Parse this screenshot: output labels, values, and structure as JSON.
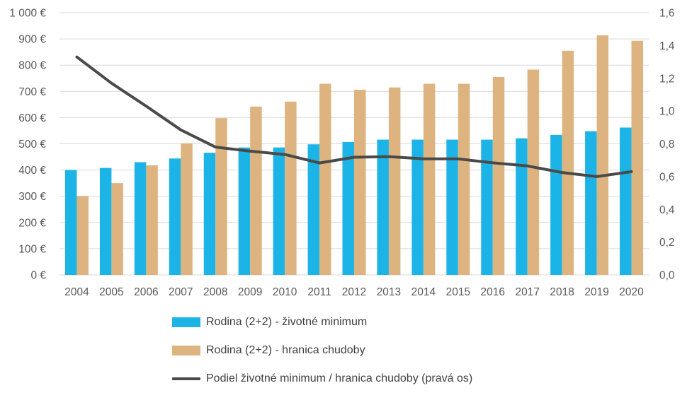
{
  "colors": {
    "life_minimum": "#1cb4e6",
    "poverty_line": "#ddb47f",
    "ratio": "#4a4a4a",
    "grid": "#d9d9d9",
    "text": "#595959"
  },
  "chart_data": {
    "type": "bar",
    "categories": [
      "2004",
      "2005",
      "2006",
      "2007",
      "2008",
      "2009",
      "2010",
      "2011",
      "2012",
      "2013",
      "2014",
      "2015",
      "2016",
      "2017",
      "2018",
      "2019",
      "2020"
    ],
    "series": [
      {
        "name": "Rodina (2+2) - životné minimum",
        "type": "bar",
        "axis": "left",
        "values": [
          400,
          408,
          430,
          444,
          466,
          486,
          486,
          498,
          507,
          516,
          516,
          516,
          516,
          521,
          534,
          548,
          562
        ]
      },
      {
        "name": "Rodina (2+2) - hranica chudoby",
        "type": "bar",
        "axis": "left",
        "values": [
          301,
          350,
          418,
          502,
          598,
          642,
          661,
          729,
          706,
          715,
          729,
          729,
          755,
          783,
          855,
          914,
          893
        ]
      },
      {
        "name": "Podiel životné minimum / hranica chudoby (pravá os)",
        "type": "line",
        "axis": "right",
        "values": [
          1.33,
          1.17,
          1.03,
          0.885,
          0.78,
          0.755,
          0.735,
          0.683,
          0.718,
          0.722,
          0.708,
          0.708,
          0.684,
          0.665,
          0.625,
          0.6,
          0.63
        ]
      }
    ],
    "ylim_left": [
      0,
      1000
    ],
    "ylim_right": [
      0,
      1.6
    ],
    "left_tick_labels": [
      "0 €",
      "100 €",
      "200 €",
      "300 €",
      "400 €",
      "500 €",
      "600 €",
      "700 €",
      "800 €",
      "900 €",
      "1 000 €"
    ],
    "right_tick_labels": [
      "0,0",
      "0,2",
      "0,4",
      "0,6",
      "0,8",
      "1,0",
      "1,2",
      "1,4",
      "1,6"
    ],
    "grid": true,
    "legend_position": "bottom"
  }
}
